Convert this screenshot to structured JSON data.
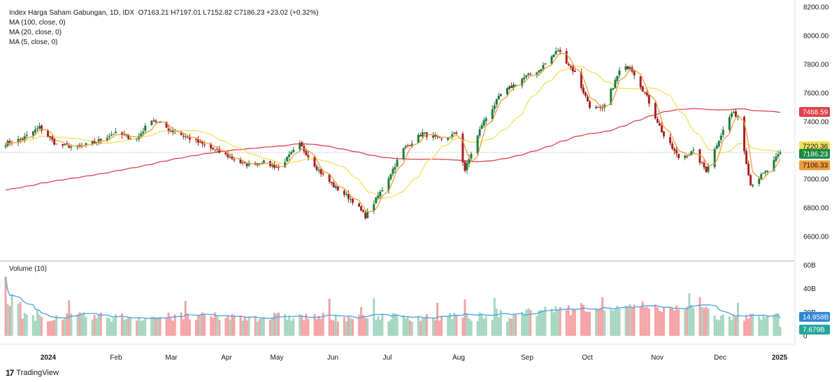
{
  "header": {
    "symbol_line": "Index Harga Saham Gabungan, 1D, IDX",
    "ohlc": "O7163.21  H7197.01  L7152.82  C7186.23  +23.02 (+0.32%)",
    "ma100": "MA (100, close, 0)",
    "ma20": "MA (20, close, 0)",
    "ma5": "MA (5, close, 0)"
  },
  "volume_title": "Volume (10)",
  "branding": {
    "logo_mark": "17",
    "name": "TradingView"
  },
  "colors": {
    "up": "#26a69a",
    "down": "#ef5350",
    "candle_up_body": "#1b7a3e",
    "candle_down_body": "#a52121",
    "ma100": "#e0414b",
    "ma20": "#f2e05a",
    "ma5": "#f29d38",
    "vol_ma": "#4aa3df",
    "vol_up": "#a5d6c1",
    "vol_down": "#f5a3a6"
  },
  "chart_data": {
    "type": "candlestick",
    "title": "Index Harga Saham Gabungan, 1D, IDX",
    "price_axis": {
      "min": 6500,
      "max": 8200,
      "ticks": [
        "8200.00",
        "8000.00",
        "7800.00",
        "7600.00",
        "7400.00",
        "7200.00",
        "7000.00",
        "6800.00",
        "6600.00"
      ]
    },
    "volume_axis": {
      "ticks": [
        "60B",
        "40B",
        "20B",
        "0"
      ]
    },
    "x_labels": [
      "2024",
      "Feb",
      "Mar",
      "Apr",
      "May",
      "Jun",
      "Jul",
      "Aug",
      "Sep",
      "Oct",
      "Nov",
      "Dec",
      "2025"
    ],
    "close_path": [
      [
        "2024-01-02",
        7250
      ],
      [
        "2024-01-10",
        7280
      ],
      [
        "2024-01-18",
        7360
      ],
      [
        "2024-01-26",
        7240
      ],
      [
        "2024-02-05",
        7220
      ],
      [
        "2024-02-14",
        7260
      ],
      [
        "2024-02-22",
        7320
      ],
      [
        "2024-03-04",
        7280
      ],
      [
        "2024-03-11",
        7420
      ],
      [
        "2024-03-20",
        7340
      ],
      [
        "2024-03-28",
        7290
      ],
      [
        "2024-04-16",
        7160
      ],
      [
        "2024-04-24",
        7100
      ],
      [
        "2024-05-02",
        7120
      ],
      [
        "2024-05-10",
        7080
      ],
      [
        "2024-05-20",
        7240
      ],
      [
        "2024-05-29",
        7060
      ],
      [
        "2024-06-05",
        6950
      ],
      [
        "2024-06-14",
        6850
      ],
      [
        "2024-06-20",
        6740
      ],
      [
        "2024-06-28",
        6930
      ],
      [
        "2024-07-08",
        7210
      ],
      [
        "2024-07-17",
        7320
      ],
      [
        "2024-07-26",
        7270
      ],
      [
        "2024-08-02",
        7320
      ],
      [
        "2024-08-06",
        7060
      ],
      [
        "2024-08-14",
        7380
      ],
      [
        "2024-08-23",
        7590
      ],
      [
        "2024-09-02",
        7700
      ],
      [
        "2024-09-10",
        7760
      ],
      [
        "2024-09-19",
        7900
      ],
      [
        "2024-09-27",
        7740
      ],
      [
        "2024-10-04",
        7510
      ],
      [
        "2024-10-10",
        7480
      ],
      [
        "2024-10-18",
        7750
      ],
      [
        "2024-10-23",
        7790
      ],
      [
        "2024-10-31",
        7570
      ],
      [
        "2024-11-08",
        7300
      ],
      [
        "2024-11-15",
        7150
      ],
      [
        "2024-11-22",
        7190
      ],
      [
        "2024-11-28",
        7060
      ],
      [
        "2024-12-04",
        7280
      ],
      [
        "2024-12-10",
        7460
      ],
      [
        "2024-12-13",
        7440
      ],
      [
        "2024-12-19",
        6960
      ],
      [
        "2024-12-27",
        7060
      ],
      [
        "2025-01-02",
        7186
      ]
    ],
    "series": [
      {
        "name": "MA (100, close, 0)",
        "last": "7468.59"
      },
      {
        "name": "MA (20, close, 0)",
        "last": "7220.36"
      },
      {
        "name": "MA (5, close, 0)",
        "last": "7106.33"
      }
    ],
    "last_close": "7186.23",
    "volume_last": [
      "14.958B",
      "7.679B"
    ],
    "volume_max_first_day": 50
  }
}
